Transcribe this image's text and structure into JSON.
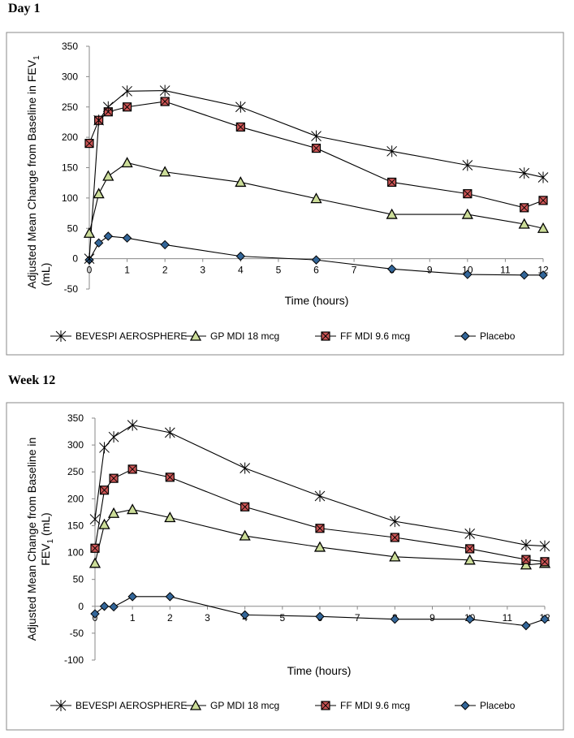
{
  "page": {
    "headings": [
      "Day 1",
      "Week 12"
    ]
  },
  "legend_labels": [
    "BEVESPI AEROSPHERE",
    "GP MDI 18  mcg",
    "FF MDI 9.6  mcg",
    "Placebo"
  ],
  "colors": {
    "bevespi": "#000000",
    "gp_fill": "#ccdd99",
    "ff_fill": "#cc5555",
    "placebo_fill": "#336699",
    "line": "#000000"
  },
  "chart_data": [
    {
      "type": "line",
      "title": "Day 1",
      "xlabel": "Time (hours)",
      "ylabel": "Adjusted Mean Change from Baseline in FEV1 (mL)",
      "ylabel_line1": "Adjusted Mean Change from Baseline in FEV",
      "ylabel_sub": "1",
      "ylabel_line2": "(mL)",
      "xlim": [
        0,
        12
      ],
      "ylim": [
        -50,
        350
      ],
      "xticks": [
        "0",
        "1",
        "2",
        "3",
        "4",
        "5",
        "6",
        "7",
        "8",
        "9",
        "10",
        "11",
        "12"
      ],
      "yticks": [
        "350",
        "300",
        "250",
        "200",
        "150",
        "100",
        "50",
        "0",
        "-50"
      ],
      "series": [
        {
          "name": "BEVESPI AEROSPHERE",
          "marker": "asterisk",
          "x": [
            0,
            0.25,
            0.5,
            1,
            2,
            4,
            6,
            8,
            10,
            11.5,
            12
          ],
          "values": [
            0,
            228,
            250,
            276,
            277,
            250,
            202,
            177,
            154,
            141,
            134
          ]
        },
        {
          "name": "GP MDI 18  mcg",
          "marker": "triangle",
          "x": [
            0,
            0.25,
            0.5,
            1,
            2,
            4,
            6,
            8,
            10,
            11.5,
            12
          ],
          "values": [
            42,
            107,
            136,
            158,
            143,
            126,
            99,
            73,
            73,
            57,
            50
          ]
        },
        {
          "name": "FF MDI 9.6  mcg",
          "marker": "square",
          "x": [
            0,
            0.25,
            0.5,
            1,
            2,
            4,
            6,
            8,
            10,
            11.5,
            12
          ],
          "values": [
            190,
            228,
            242,
            250,
            259,
            217,
            182,
            126,
            107,
            84,
            96
          ]
        },
        {
          "name": "Placebo",
          "marker": "diamond",
          "x": [
            0,
            0.25,
            0.5,
            1,
            2,
            4,
            6,
            8,
            10,
            11.5,
            12
          ],
          "values": [
            -2,
            26,
            37,
            34,
            23,
            4,
            -2,
            -17,
            -26,
            -27,
            -27
          ]
        }
      ]
    },
    {
      "type": "line",
      "title": "Week 12",
      "xlabel": "Time (hours)",
      "ylabel": "Adjusted Mean Change from Baseline in FEV1 (mL)",
      "ylabel_line1": "Adjusted Mean Change from Baseline in",
      "ylabel_line2": "FEV",
      "ylabel_sub": "1",
      "ylabel_line2_tail": " (mL)",
      "xlim": [
        0,
        12
      ],
      "ylim": [
        -100,
        350
      ],
      "xticks": [
        "0",
        "1",
        "2",
        "3",
        "4",
        "5",
        "6",
        "7",
        "8",
        "9",
        "10",
        "11",
        "12"
      ],
      "yticks": [
        "350",
        "300",
        "250",
        "200",
        "150",
        "100",
        "50",
        "0",
        "-50",
        "-100"
      ],
      "series": [
        {
          "name": "BEVESPI AEROSPHERE",
          "marker": "asterisk",
          "x": [
            0,
            0.25,
            0.5,
            1,
            2,
            4,
            6,
            8,
            10,
            11.5,
            12
          ],
          "values": [
            162,
            295,
            315,
            337,
            323,
            257,
            205,
            158,
            135,
            114,
            112
          ]
        },
        {
          "name": "GP MDI 18  mcg",
          "marker": "triangle",
          "x": [
            0,
            0.25,
            0.5,
            1,
            2,
            4,
            6,
            8,
            10,
            11.5,
            12
          ],
          "values": [
            80,
            152,
            173,
            180,
            165,
            131,
            110,
            92,
            86,
            77,
            80
          ]
        },
        {
          "name": "FF MDI 9.6  mcg",
          "marker": "square",
          "x": [
            0,
            0.25,
            0.5,
            1,
            2,
            4,
            6,
            8,
            10,
            11.5,
            12
          ],
          "values": [
            108,
            216,
            238,
            255,
            240,
            185,
            145,
            128,
            107,
            87,
            83
          ]
        },
        {
          "name": "Placebo",
          "marker": "diamond",
          "x": [
            0,
            0.25,
            0.5,
            1,
            2,
            4,
            6,
            8,
            10,
            11.5,
            12
          ],
          "values": [
            -14,
            0,
            -1,
            18,
            18,
            -16,
            -19,
            -24,
            -24,
            -36,
            -24
          ]
        }
      ]
    }
  ]
}
